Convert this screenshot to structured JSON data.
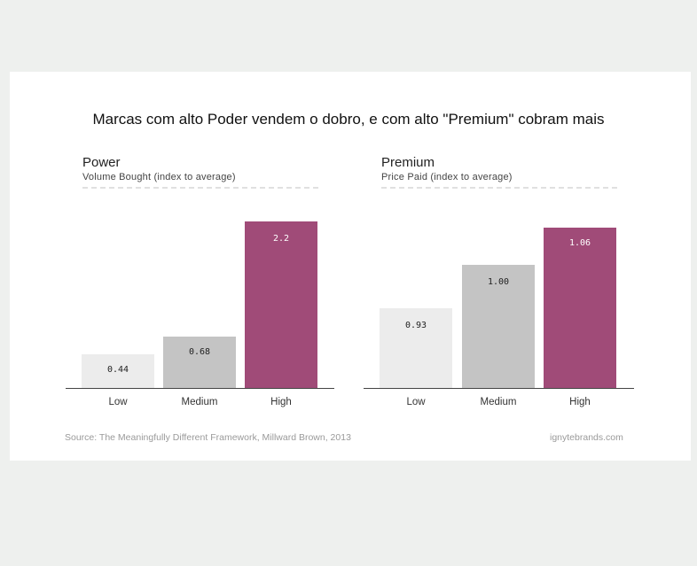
{
  "title": "Marcas com alto Poder vendem o dobro, e com alto \"Premium\" cobram mais",
  "source": "Source: The Meaningfully Different Framework, Millward Brown, 2013",
  "brand": "ignytebrands.com",
  "colors": {
    "low": "#ececec",
    "medium": "#c4c4c4",
    "high": "#a04b78"
  },
  "chart_data": [
    {
      "type": "bar",
      "title": "Power",
      "subtitle": "Volume Bought (index to average)",
      "categories": [
        "Low",
        "Medium",
        "High"
      ],
      "values": [
        0.44,
        0.68,
        2.2
      ],
      "value_labels": [
        "0.44",
        "0.68",
        "2.2"
      ],
      "ylim": [
        0,
        2.4
      ],
      "grid": false
    },
    {
      "type": "bar",
      "title": "Premium",
      "subtitle": "Price Paid (index to average)",
      "categories": [
        "Low",
        "Medium",
        "High"
      ],
      "values": [
        0.93,
        1.0,
        1.06
      ],
      "value_labels": [
        "0.93",
        "1.00",
        "1.06"
      ],
      "ylim": [
        0.8,
        1.1
      ],
      "grid": false
    }
  ]
}
